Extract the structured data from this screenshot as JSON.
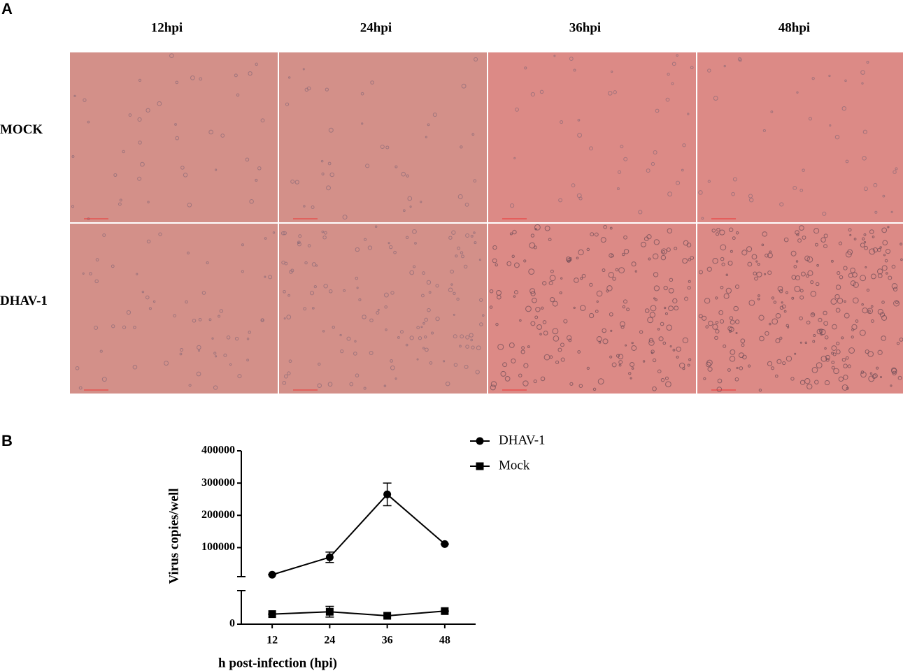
{
  "panel_a": {
    "label": "A",
    "columns": [
      "12hpi",
      "24hpi",
      "36hpi",
      "48hpi"
    ],
    "rows": [
      "MOCK",
      "DHAV-1"
    ]
  },
  "chart_data": {
    "type": "line",
    "panel_label": "B",
    "x_label": "h post-infection (hpi)",
    "y_label": "Virus copies/well",
    "x": [
      12,
      24,
      36,
      48
    ],
    "xlim": [
      6,
      54
    ],
    "xticks": [
      12,
      24,
      36,
      48
    ],
    "ylim": [
      10000,
      400000
    ],
    "yticks": [
      100000,
      200000,
      300000,
      400000
    ],
    "ylim_lower": [
      0,
      10000
    ],
    "yticks_lower": [
      0
    ],
    "legend": "top-right",
    "series": [
      {
        "name": "DHAV-1",
        "color": "#000000",
        "marker": "circle",
        "segment": "upper",
        "values": [
          16000,
          70000,
          265000,
          111000
        ],
        "errors": [
          0,
          16000,
          35000,
          0
        ]
      },
      {
        "name": "Mock",
        "color": "#000000",
        "marker": "square",
        "segment": "lower",
        "values": [
          3000,
          3700,
          2500,
          3900
        ],
        "errors": [
          0,
          1600,
          0,
          0
        ]
      }
    ]
  }
}
